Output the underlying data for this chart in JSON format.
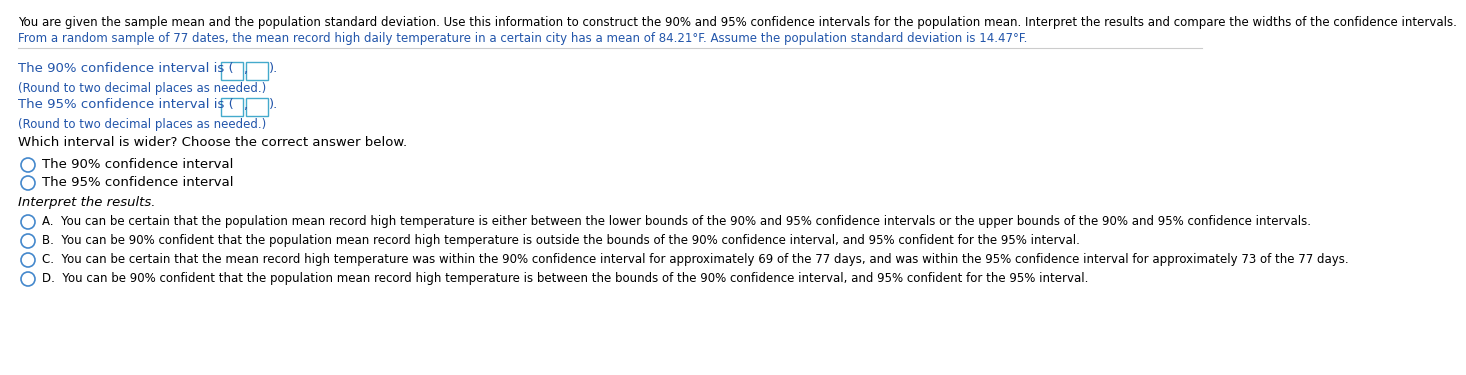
{
  "bg_color": "#ffffff",
  "text_color": "#000000",
  "blue_color": "#2255aa",
  "header_line1": "You are given the sample mean and the population standard deviation. Use this information to construct the 90% and 95% confidence intervals for the population mean. Interpret the results and compare the widths of the confidence intervals.",
  "header_line2": "From a random sample of 77 dates, the mean record high daily temperature in a certain city has a mean of 84.21°F. Assume the population standard deviation is 14.47°F.",
  "ci90_sub": "(Round to two decimal places as needed.)",
  "ci95_sub": "(Round to two decimal places as needed.)",
  "which_wider": "Which interval is wider? Choose the correct answer below.",
  "option_90": "The 90% confidence interval",
  "option_95": "The 95% confidence interval",
  "interpret": "Interpret the results.",
  "optA": "A.  You can be certain that the population mean record high temperature is either between the lower bounds of the 90% and 95% confidence intervals or the upper bounds of the 90% and 95% confidence intervals.",
  "optB": "B.  You can be 90% confident that the population mean record high temperature is outside the bounds of the 90% confidence interval, and 95% confident for the 95% interval.",
  "optC": "C.  You can be certain that the mean record high temperature was within the 90% confidence interval for approximately 69 of the 77 days, and was within the 95% confidence interval for approximately 73 of the 77 days.",
  "optD": "D.  You can be 90% confident that the population mean record high temperature is between the bounds of the 90% confidence interval, and 95% confident for the 95% interval.",
  "font_size_header": 8.5,
  "font_size_body": 9.5,
  "font_size_small": 8.5,
  "circle_color": "#4488cc",
  "box_color": "#44aacc",
  "sep_color": "#cccccc"
}
